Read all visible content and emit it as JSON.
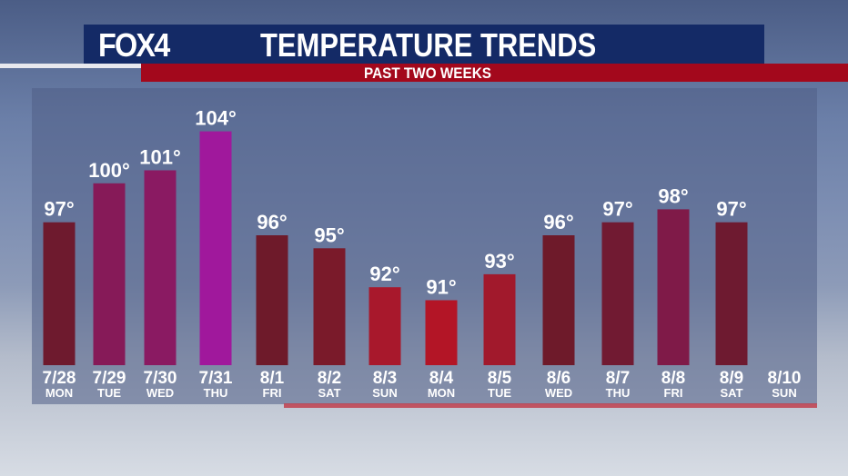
{
  "header": {
    "logo": "FOX4",
    "title": "TEMPERATURE TRENDS",
    "subtitle": "PAST TWO WEEKS"
  },
  "chart_data": {
    "type": "bar",
    "title": "TEMPERATURE TRENDS",
    "subtitle": "PAST TWO WEEKS",
    "categories": [
      "7/28",
      "7/29",
      "7/30",
      "7/31",
      "8/1",
      "8/2",
      "8/3",
      "8/4",
      "8/5",
      "8/6",
      "8/7",
      "8/8",
      "8/9",
      "8/10"
    ],
    "days": [
      "MON",
      "TUE",
      "WED",
      "THU",
      "FRI",
      "SAT",
      "SUN",
      "MON",
      "TUE",
      "WED",
      "THU",
      "FRI",
      "SAT",
      "SUN"
    ],
    "values": [
      97,
      100,
      101,
      104,
      96,
      95,
      92,
      91,
      93,
      96,
      97,
      98,
      97,
      null
    ],
    "value_labels": [
      "97°",
      "100°",
      "101°",
      "104°",
      "96°",
      "95°",
      "92°",
      "91°",
      "93°",
      "96°",
      "97°",
      "98°",
      "97°",
      ""
    ],
    "colors": [
      "#6e1a2e",
      "#861a58",
      "#8a1a62",
      "#a0189c",
      "#6e1a2a",
      "#7a1a2a",
      "#a8182c",
      "#b31526",
      "#a1192c",
      "#6e1a2a",
      "#711a32",
      "#7f1a48",
      "#6e1a30",
      ""
    ],
    "ylim": [
      86,
      106
    ],
    "xlabel": "",
    "ylabel": "",
    "grid": false
  }
}
